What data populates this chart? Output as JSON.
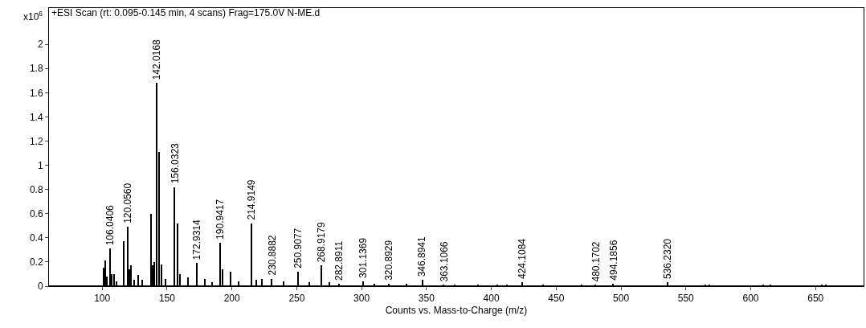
{
  "chart_data": {
    "type": "bar",
    "title": "+ESI Scan (rt: 0.095-0.145 min, 4 scans) Frag=175.0V N-ME.d",
    "xlabel": "Counts vs. Mass-to-Charge (m/z)",
    "ylabel": "x10$^{6}$",
    "x": [
      101.5,
      102.5,
      104,
      106.0406,
      107.5,
      109.5,
      111,
      117,
      120.056,
      121,
      122,
      125,
      128,
      131,
      138,
      139,
      140,
      142.0168,
      144,
      146,
      149,
      156.0323,
      158,
      160,
      166,
      172.9314,
      179,
      185,
      190.9417,
      193,
      199,
      205,
      214.9149,
      219,
      223,
      230.8882,
      240,
      250.9077,
      260,
      268.9179,
      275,
      282.8911,
      301.1369,
      310,
      320.8929,
      335,
      346.8941,
      363.1066,
      372,
      390,
      405,
      412,
      424.1084,
      440,
      470,
      480.1702,
      494.1856,
      536.232,
      565,
      568,
      610,
      615,
      655,
      658
    ],
    "values": [
      0.15,
      0.21,
      0.08,
      0.31,
      0.1,
      0.1,
      0.04,
      0.37,
      0.49,
      0.14,
      0.17,
      0.05,
      0.09,
      0.05,
      0.6,
      0.17,
      0.2,
      1.68,
      1.11,
      0.18,
      0.06,
      0.82,
      0.52,
      0.1,
      0.07,
      0.19,
      0.06,
      0.03,
      0.36,
      0.14,
      0.12,
      0.04,
      0.52,
      0.05,
      0.06,
      0.06,
      0.04,
      0.12,
      0.03,
      0.17,
      0.03,
      0.02,
      0.04,
      0.02,
      0.02,
      0.02,
      0.05,
      0.01,
      0.01,
      0.01,
      0.01,
      0.01,
      0.03,
      0.01,
      0.01,
      0.01,
      0.02,
      0.03,
      0.01,
      0.01,
      0.01,
      0.01,
      0.01,
      0.01
    ],
    "annotations": [
      {
        "text": "106.0406",
        "x": 106.0406,
        "y": 0.31
      },
      {
        "text": "120.0560",
        "x": 120.056,
        "y": 0.49
      },
      {
        "text": "142.0168",
        "x": 142.0168,
        "y": 1.68
      },
      {
        "text": "156.0323",
        "x": 156.0323,
        "y": 0.82
      },
      {
        "text": "172.9314",
        "x": 172.9314,
        "y": 0.19
      },
      {
        "text": "190.9417",
        "x": 190.9417,
        "y": 0.36
      },
      {
        "text": "214.9149",
        "x": 214.9149,
        "y": 0.52
      },
      {
        "text": "230.8882",
        "x": 230.8882,
        "y": 0.06
      },
      {
        "text": "250.9077",
        "x": 250.9077,
        "y": 0.12
      },
      {
        "text": "268.9179",
        "x": 268.9179,
        "y": 0.17
      },
      {
        "text": "282.8911",
        "x": 282.8911,
        "y": 0.02
      },
      {
        "text": "301.1369",
        "x": 301.1369,
        "y": 0.04
      },
      {
        "text": "320.8929",
        "x": 320.8929,
        "y": 0.02
      },
      {
        "text": "346.8941",
        "x": 346.8941,
        "y": 0.05
      },
      {
        "text": "363.1066",
        "x": 363.1066,
        "y": 0.01
      },
      {
        "text": "424.1084",
        "x": 424.1084,
        "y": 0.03
      },
      {
        "text": "480.1702",
        "x": 480.1702,
        "y": 0.01
      },
      {
        "text": "494.1856",
        "x": 494.1856,
        "y": 0.02
      },
      {
        "text": "536.2320",
        "x": 536.232,
        "y": 0.03
      }
    ],
    "color": "#000000",
    "xlim": [
      59,
      687
    ],
    "xticks": [
      100,
      150,
      200,
      250,
      300,
      350,
      400,
      450,
      500,
      550,
      600,
      650
    ],
    "ylim": [
      0,
      2.3
    ],
    "yticks": [
      0,
      0.2,
      0.4,
      0.6,
      0.8,
      1,
      1.2,
      1.4,
      1.6,
      1.8,
      2
    ],
    "grid": false
  }
}
